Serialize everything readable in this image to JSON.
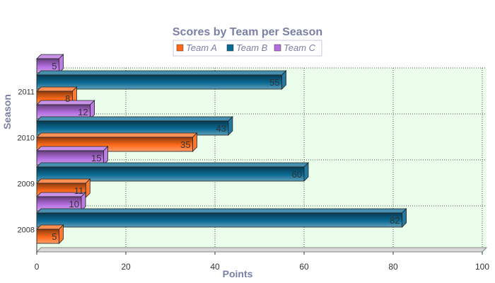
{
  "chart_data": {
    "type": "bar",
    "orientation": "horizontal",
    "title": "Scores by Team per Season",
    "xlabel": "Points",
    "ylabel": "Season",
    "categories": [
      "2008",
      "2009",
      "2010",
      "2011"
    ],
    "series": [
      {
        "name": "Team A",
        "values": [
          5,
          11,
          35,
          8
        ],
        "color": "#ff6a1a"
      },
      {
        "name": "Team B",
        "values": [
          82,
          60,
          43,
          55
        ],
        "color": "#0a6a94"
      },
      {
        "name": "Team C",
        "values": [
          10,
          15,
          12,
          5
        ],
        "color": "#b46ee0"
      }
    ],
    "xlim": [
      0,
      100
    ],
    "xticks": [
      "0",
      "20",
      "40",
      "60",
      "80",
      "100"
    ],
    "grid": true,
    "legend_position": "top-center",
    "plot_background": "#ebfdeb"
  }
}
